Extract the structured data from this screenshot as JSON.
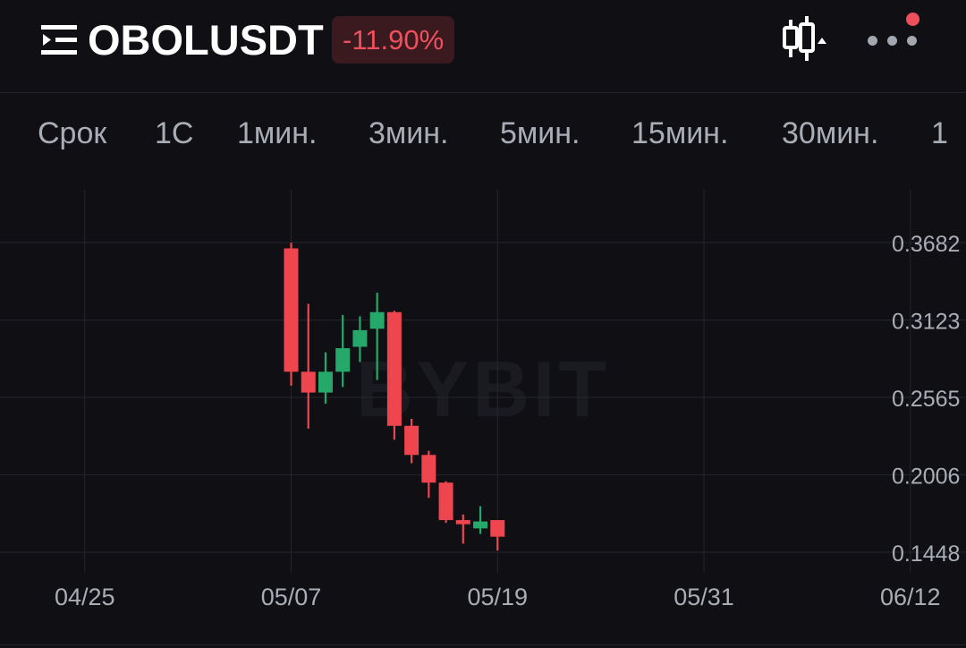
{
  "header": {
    "symbol": "OBOLUSDT",
    "change": "-11.90%",
    "menu_icon": "list-menu-icon",
    "chart_type_icon": "candlestick-icon",
    "more_icon": "more-dots-icon",
    "colors": {
      "change_bg": "#3a1a1f",
      "change_text": "#f0505e",
      "notify": "#ef4f5d"
    }
  },
  "timeframes": [
    "Срок",
    "1С",
    "1мин.",
    "3мин.",
    "5мин.",
    "15мин.",
    "30мин.",
    "1"
  ],
  "watermark": "BYBIT",
  "chart_data": {
    "type": "candlestick",
    "x_ticks": [
      "04/25",
      "05/07",
      "05/19",
      "05/31",
      "06/12"
    ],
    "y_ticks": [
      "0.3682",
      "0.3123",
      "0.2565",
      "0.2006",
      "0.1448"
    ],
    "ylim": [
      0.1448,
      0.3682
    ],
    "grid": true,
    "colors": {
      "up": "#26a86b",
      "down": "#ef454f"
    },
    "candles": [
      {
        "date": "05/07",
        "open": 0.364,
        "high": 0.368,
        "low": 0.265,
        "close": 0.275
      },
      {
        "date": "05/08",
        "open": 0.275,
        "high": 0.324,
        "low": 0.234,
        "close": 0.26
      },
      {
        "date": "05/09",
        "open": 0.26,
        "high": 0.289,
        "low": 0.252,
        "close": 0.275
      },
      {
        "date": "05/10",
        "open": 0.275,
        "high": 0.316,
        "low": 0.264,
        "close": 0.292
      },
      {
        "date": "05/11",
        "open": 0.293,
        "high": 0.315,
        "low": 0.282,
        "close": 0.305
      },
      {
        "date": "05/12",
        "open": 0.306,
        "high": 0.332,
        "low": 0.269,
        "close": 0.318
      },
      {
        "date": "05/13",
        "open": 0.318,
        "high": 0.319,
        "low": 0.226,
        "close": 0.236
      },
      {
        "date": "05/14",
        "open": 0.236,
        "high": 0.241,
        "low": 0.209,
        "close": 0.215
      },
      {
        "date": "05/15",
        "open": 0.215,
        "high": 0.218,
        "low": 0.184,
        "close": 0.195
      },
      {
        "date": "05/16",
        "open": 0.195,
        "high": 0.196,
        "low": 0.166,
        "close": 0.168
      },
      {
        "date": "05/17",
        "open": 0.168,
        "high": 0.172,
        "low": 0.151,
        "close": 0.165
      },
      {
        "date": "05/18",
        "open": 0.162,
        "high": 0.178,
        "low": 0.158,
        "close": 0.167
      },
      {
        "date": "05/19",
        "open": 0.168,
        "high": 0.168,
        "low": 0.146,
        "close": 0.156
      }
    ]
  }
}
